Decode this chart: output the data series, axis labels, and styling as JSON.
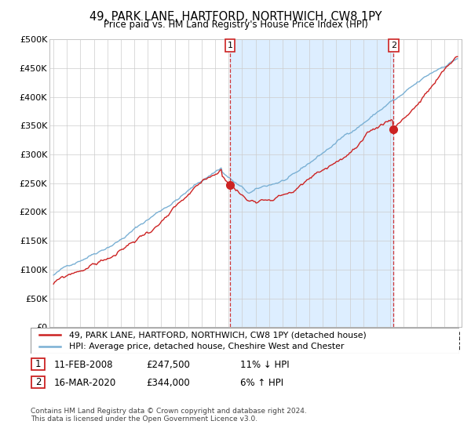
{
  "title": "49, PARK LANE, HARTFORD, NORTHWICH, CW8 1PY",
  "subtitle": "Price paid vs. HM Land Registry's House Price Index (HPI)",
  "ylabel_ticks": [
    "£0",
    "£50K",
    "£100K",
    "£150K",
    "£200K",
    "£250K",
    "£300K",
    "£350K",
    "£400K",
    "£450K",
    "£500K"
  ],
  "ylim": [
    0,
    500000
  ],
  "ytick_vals": [
    0,
    50000,
    100000,
    150000,
    200000,
    250000,
    300000,
    350000,
    400000,
    450000,
    500000
  ],
  "hpi_color": "#7ab0d4",
  "price_color": "#cc2222",
  "sale1_t": 2008.1,
  "sale1_price": 247500,
  "sale2_t": 2020.25,
  "sale2_price": 344000,
  "legend_label1": "49, PARK LANE, HARTFORD, NORTHWICH, CW8 1PY (detached house)",
  "legend_label2": "HPI: Average price, detached house, Cheshire West and Chester",
  "note1_date": "11-FEB-2008",
  "note1_price": "£247,500",
  "note1_hpi": "11% ↓ HPI",
  "note2_date": "16-MAR-2020",
  "note2_price": "£344,000",
  "note2_hpi": "6% ↑ HPI",
  "footer": "Contains HM Land Registry data © Crown copyright and database right 2024.\nThis data is licensed under the Open Government Licence v3.0.",
  "shade_color": "#ddeeff",
  "background_color": "#ffffff",
  "xlim_left": 1994.7,
  "xlim_right": 2025.3
}
